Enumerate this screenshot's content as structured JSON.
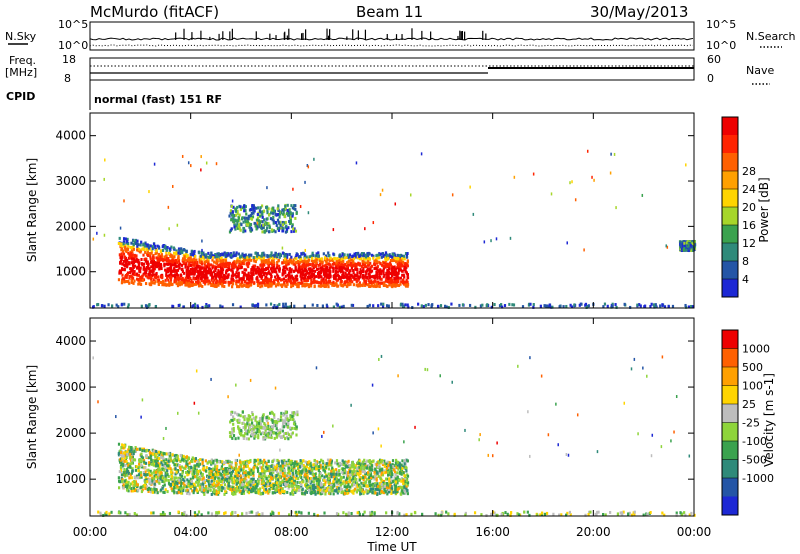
{
  "header": {
    "station": "McMurdo (fitACF)",
    "beam": "Beam 11",
    "date": "30/May/2013"
  },
  "noise_panel": {
    "left_label": "N.Sky",
    "right_label": "N.Search",
    "left_ticks": [
      "10^5",
      "10^0"
    ],
    "right_ticks": [
      "10^5",
      "10^0"
    ]
  },
  "freq_panel": {
    "left_label_1": "Freq.",
    "left_label_2": "[MHz]",
    "right_label": "Nave",
    "left_ticks": [
      "18",
      "8"
    ],
    "right_ticks": [
      "60",
      "0"
    ]
  },
  "cpid": {
    "label": "CPID",
    "mode": "normal (fast) 151 RF"
  },
  "chart_data": [
    {
      "type": "heatmap",
      "name_hint": "power",
      "ylabel": "Slant Range [km]",
      "xlabel": "Time UT",
      "x_ticks": [
        "00:00",
        "04:00",
        "08:00",
        "12:00",
        "16:00",
        "20:00",
        "00:00"
      ],
      "y_ticks": [
        1000,
        2000,
        3000,
        4000
      ],
      "ylim": [
        200,
        4500
      ],
      "xlim_hours": [
        0,
        24
      ],
      "colorbar": {
        "label": "Power [dB]",
        "ticks": [
          "4",
          "8",
          "12",
          "16",
          "20",
          "24",
          "28"
        ],
        "range": [
          0,
          32
        ],
        "colors": [
          "#1d28d4",
          "#2455a6",
          "#2f8a7a",
          "#3aa24e",
          "#a6d62a",
          "#ffd400",
          "#ffa000",
          "#ff6000",
          "#ff2400",
          "#ee0000"
        ]
      },
      "echo_regions": [
        {
          "t_start": 1.1,
          "t_end": 12.6,
          "r_min": 700,
          "r_max": 1450,
          "level": "high"
        },
        {
          "t_start": 5.5,
          "t_end": 8.2,
          "r_min": 1900,
          "r_max": 2500,
          "level": "medium"
        },
        {
          "t_start": 0.0,
          "t_end": 24.0,
          "r_min": 180,
          "r_max": 320,
          "level": "low"
        },
        {
          "t_start": 23.4,
          "t_end": 24.0,
          "r_min": 1500,
          "r_max": 1700,
          "level": "medium"
        }
      ]
    },
    {
      "type": "heatmap",
      "name_hint": "velocity",
      "ylabel": "Slant Range [km]",
      "xlabel": "Time UT",
      "x_ticks": [
        "00:00",
        "04:00",
        "08:00",
        "12:00",
        "16:00",
        "20:00",
        "00:00"
      ],
      "y_ticks": [
        1000,
        2000,
        3000,
        4000
      ],
      "ylim": [
        200,
        4500
      ],
      "xlim_hours": [
        0,
        24
      ],
      "colorbar": {
        "label": "Velocity [m s-1]",
        "ticks": [
          "1000",
          "500",
          "100",
          "25",
          "-25",
          "-100",
          "-500",
          "-1000"
        ],
        "colors": [
          "#1d28d4",
          "#2455a6",
          "#2f8a7a",
          "#3aa24e",
          "#8ed43a",
          "#bdbdbd",
          "#ffd400",
          "#ffa000",
          "#ff6000",
          "#ee0000"
        ]
      },
      "echo_regions": [
        {
          "t_start": 1.1,
          "t_end": 12.6,
          "r_min": 700,
          "r_max": 1450,
          "level": "mixed"
        },
        {
          "t_start": 5.5,
          "t_end": 8.2,
          "r_min": 1900,
          "r_max": 2500,
          "level": "positive"
        },
        {
          "t_start": 0.0,
          "t_end": 24.0,
          "r_min": 180,
          "r_max": 320,
          "level": "near-zero"
        }
      ]
    }
  ]
}
